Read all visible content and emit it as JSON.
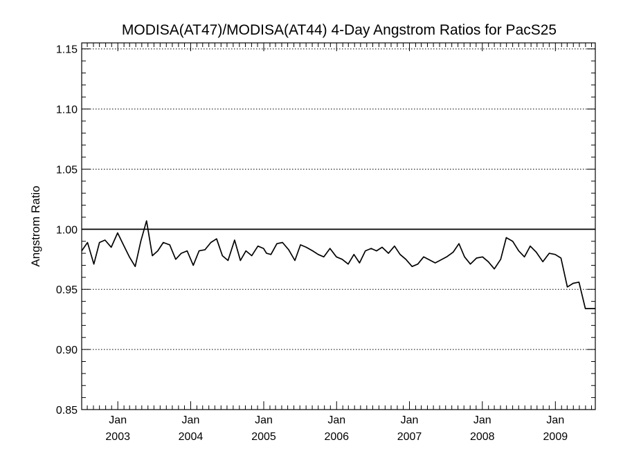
{
  "chart_data": {
    "type": "line",
    "title": "MODISA(AT47)/MODISA(AT44) 4-Day Angstrom Ratios for PacS25",
    "xlabel": "",
    "ylabel": "Angstrom Ratio",
    "xlim": [
      "2002-07-04",
      "2009-07-20"
    ],
    "ylim": [
      0.85,
      1.155
    ],
    "yticks": [
      "0.85",
      "0.90",
      "0.95",
      "1.00",
      "1.05",
      "1.10",
      "1.15"
    ],
    "grid": "horizontal dotted",
    "reference_line": 1.0,
    "xticks": [
      {
        "month": "Jan",
        "year": "2003"
      },
      {
        "month": "Jan",
        "year": "2004"
      },
      {
        "month": "Jan",
        "year": "2005"
      },
      {
        "month": "Jan",
        "year": "2006"
      },
      {
        "month": "Jan",
        "year": "2007"
      },
      {
        "month": "Jan",
        "year": "2008"
      },
      {
        "month": "Jan",
        "year": "2009"
      }
    ],
    "series": [
      {
        "x": [
          "2002-07-04",
          "2002-08-02",
          "2002-09-03",
          "2002-10-01",
          "2002-10-29",
          "2002-11-29",
          "2002-12-31",
          "2003-01-29",
          "2003-02-28",
          "2003-03-29",
          "2003-04-26",
          "2003-05-25",
          "2003-06-23",
          "2003-07-20",
          "2003-08-17",
          "2003-09-18",
          "2003-10-18",
          "2003-11-15",
          "2003-12-14",
          "2004-01-14",
          "2004-02-12",
          "2004-03-13",
          "2004-04-11",
          "2004-05-10",
          "2004-06-08",
          "2004-07-06",
          "2004-08-08",
          "2004-09-06",
          "2004-10-04",
          "2004-11-02",
          "2004-12-03",
          "2004-12-31",
          "2005-01-15",
          "2005-02-06",
          "2005-03-08",
          "2005-04-05",
          "2005-05-06",
          "2005-06-06",
          "2005-07-04",
          "2005-08-02",
          "2005-09-03",
          "2005-10-01",
          "2005-10-29",
          "2005-11-29",
          "2005-12-31",
          "2006-01-29",
          "2006-02-28",
          "2006-03-29",
          "2006-04-26",
          "2006-05-25",
          "2006-06-23",
          "2006-07-20",
          "2006-08-17",
          "2006-09-18",
          "2006-10-18",
          "2006-11-15",
          "2006-12-14",
          "2007-01-14",
          "2007-02-12",
          "2007-03-13",
          "2007-05-10",
          "2007-07-06",
          "2007-08-08",
          "2007-09-06",
          "2007-10-04",
          "2007-11-02",
          "2007-12-03",
          "2008-01-02",
          "2008-01-31",
          "2008-03-01",
          "2008-04-02",
          "2008-04-30",
          "2008-06-01",
          "2008-07-01",
          "2008-07-30",
          "2008-08-28",
          "2008-09-27",
          "2008-10-30",
          "2008-12-01",
          "2008-12-31",
          "2009-01-29",
          "2009-03-02",
          "2009-03-31",
          "2009-04-29",
          "2009-05-31",
          "2009-06-28",
          "2009-07-20"
        ],
        "values": [
          0.982,
          0.989,
          0.971,
          0.989,
          0.991,
          0.985,
          0.997,
          0.987,
          0.977,
          0.969,
          0.99,
          1.007,
          0.978,
          0.982,
          0.989,
          0.987,
          0.975,
          0.98,
          0.982,
          0.97,
          0.982,
          0.983,
          0.989,
          0.992,
          0.978,
          0.974,
          0.991,
          0.974,
          0.982,
          0.978,
          0.986,
          0.984,
          0.98,
          0.979,
          0.988,
          0.989,
          0.983,
          0.974,
          0.987,
          0.985,
          0.982,
          0.979,
          0.977,
          0.984,
          0.977,
          0.975,
          0.971,
          0.979,
          0.972,
          0.982,
          0.984,
          0.982,
          0.985,
          0.98,
          0.986,
          0.979,
          0.975,
          0.969,
          0.971,
          0.977,
          0.972,
          0.977,
          0.981,
          0.988,
          0.977,
          0.971,
          0.976,
          0.977,
          0.973,
          0.967,
          0.975,
          0.993,
          0.99,
          0.982,
          0.977,
          0.986,
          0.981,
          0.973,
          0.98,
          0.979,
          0.976,
          0.952,
          0.955,
          0.956,
          0.934,
          0.934,
          0.934
        ]
      }
    ]
  }
}
